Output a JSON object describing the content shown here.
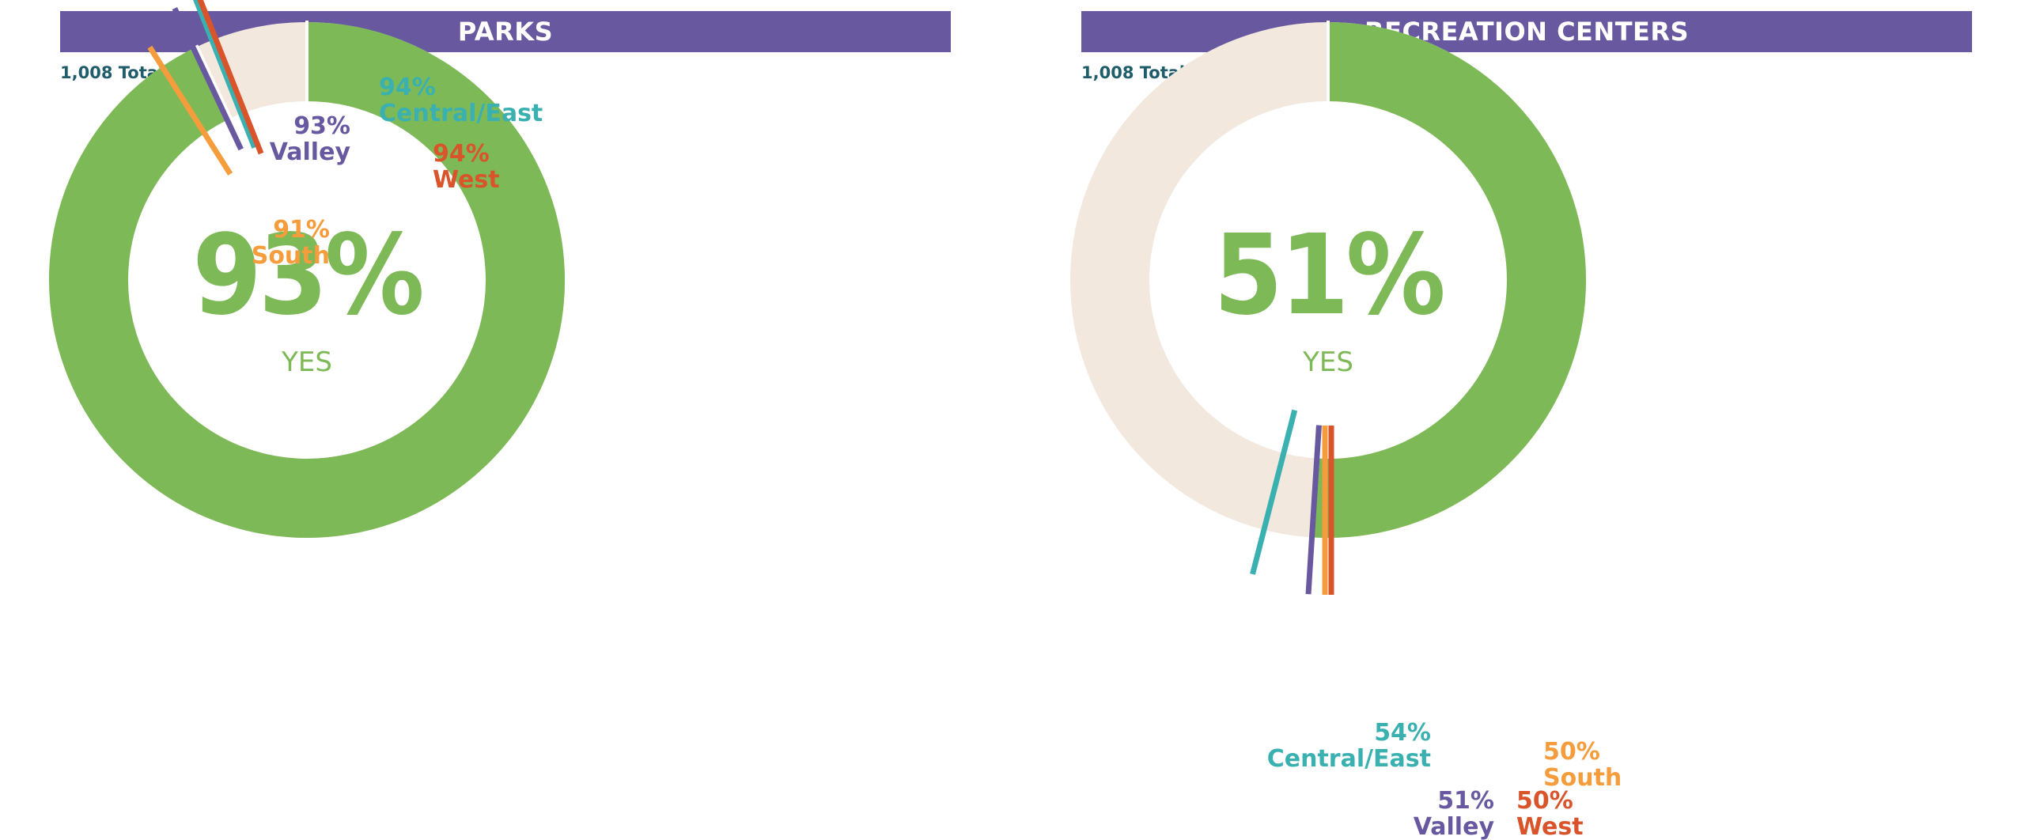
{
  "colors": {
    "header_bg": "#6858a0",
    "yes": "#7eb957",
    "no": "#f2e8de",
    "respondents_text": "#1f5d6b",
    "valley": "#6858a0",
    "central_east": "#3ab1b0",
    "west": "#d9532b",
    "south": "#f59c3c"
  },
  "chart_data": [
    {
      "type": "pie",
      "title": "PARKS",
      "subtitle": "1,008 Total Respondents",
      "center_value": "93%",
      "center_label": "YES",
      "overall_yes_pct": 93,
      "regions": [
        {
          "name": "South",
          "value": 91,
          "label": "91%"
        },
        {
          "name": "Valley",
          "value": 93,
          "label": "93%"
        },
        {
          "name": "Central/East",
          "value": 94,
          "label": "94%"
        },
        {
          "name": "West",
          "value": 94,
          "label": "94%"
        }
      ]
    },
    {
      "type": "pie",
      "title": "RECREATION CENTERS",
      "subtitle": "1,008 Total Respondents",
      "center_value": "51%",
      "center_label": "YES",
      "overall_yes_pct": 51,
      "regions": [
        {
          "name": "Central/East",
          "value": 54,
          "label": "54%"
        },
        {
          "name": "Valley",
          "value": 51,
          "label": "51%"
        },
        {
          "name": "West",
          "value": 50,
          "label": "50%"
        },
        {
          "name": "South",
          "value": 50,
          "label": "50%"
        }
      ]
    }
  ]
}
